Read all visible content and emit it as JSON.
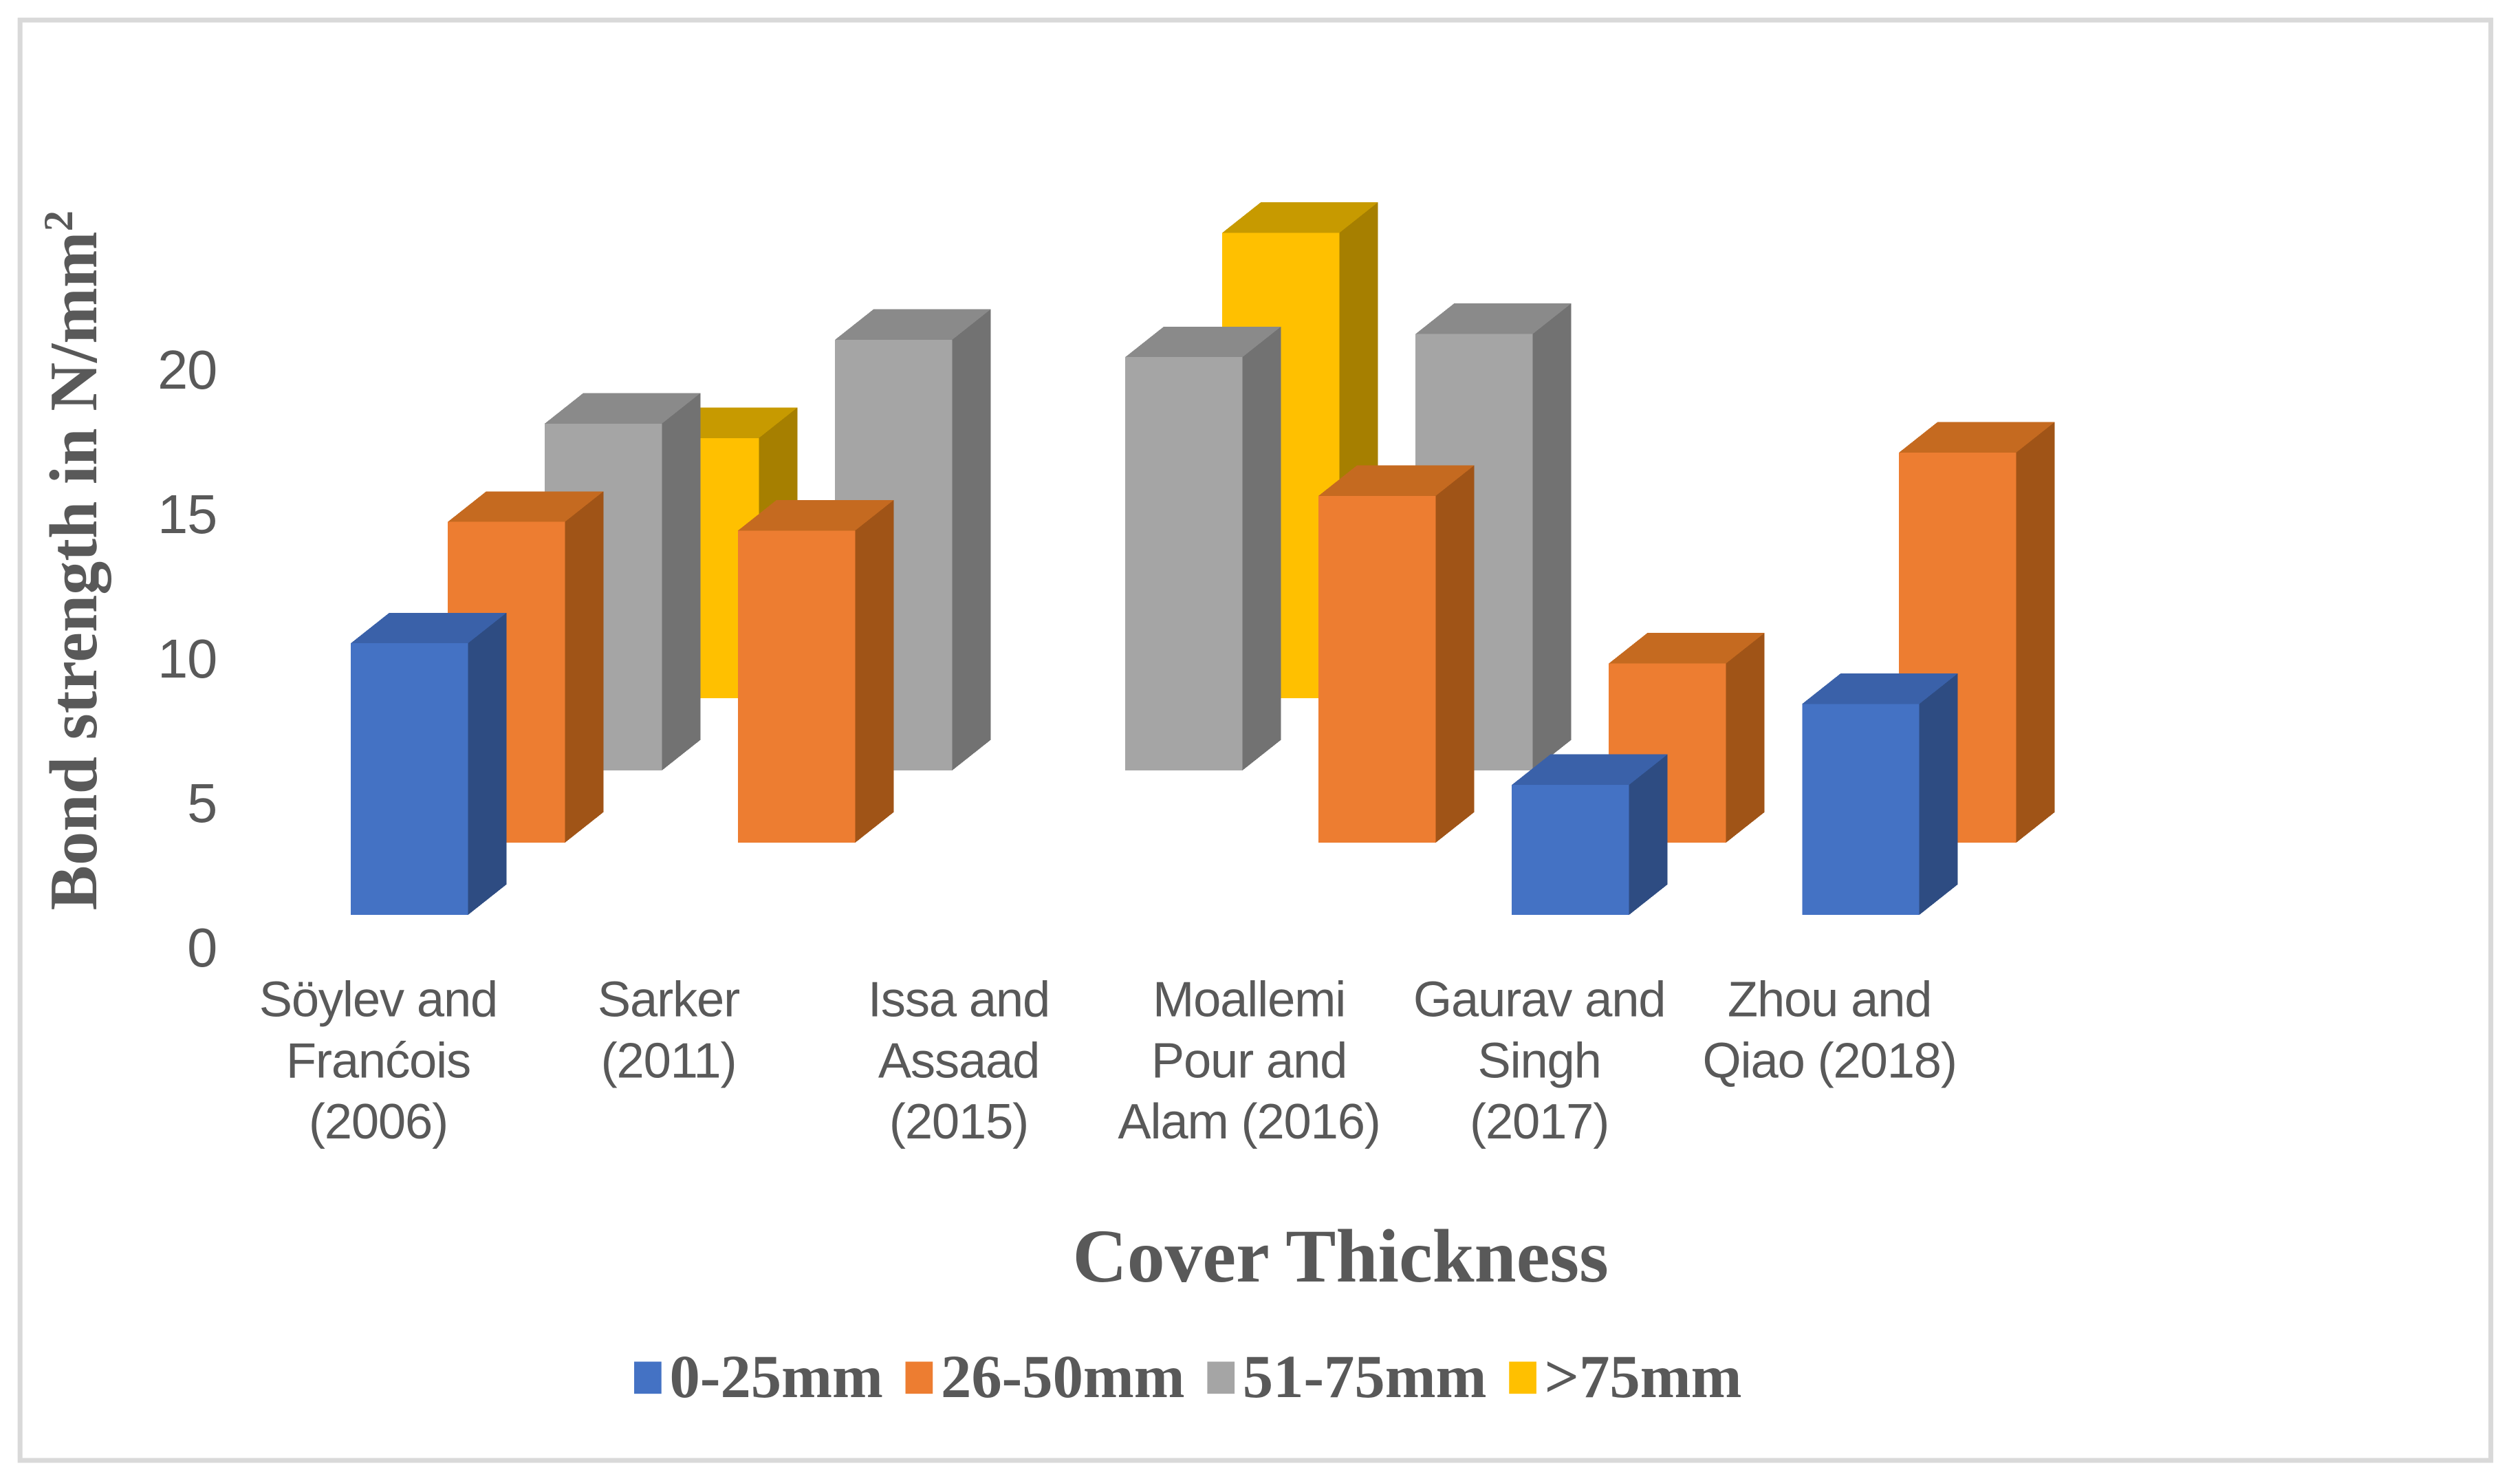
{
  "figure": {
    "background": "#FFFFFF",
    "border_color": "#D9D9D9",
    "text_color": "#595959"
  },
  "chart_data": {
    "type": "bar",
    "variant": "3d-column",
    "title": "",
    "xlabel": "Cover Thickness",
    "ylabel": "Bond strength in N/mm²",
    "ylabel_base": "Bond strength in N/mm",
    "ylabel_sup": "2",
    "ylim": [
      0,
      20
    ],
    "yticks": [
      0,
      5,
      10,
      15,
      20
    ],
    "ytick_labels": [
      "0",
      "5",
      "10",
      "15",
      "20"
    ],
    "grid": false,
    "legend_position": "bottom",
    "categories": [
      "Söylev and Franćois (2006)",
      "Sarker (2011)",
      "Issa and Assaad (2015)",
      "Moallemi Pour and Alam (2016)",
      "Gaurav and Singh (2017)",
      "Zhou and Qiao (2018)"
    ],
    "categories_wrapped": [
      "Söylev and\nFranćois\n(2006)",
      "Sarker\n(2011)",
      "Issa and\nAssaad\n(2015)",
      "Moallemi\nPour and\nAlam (2016)",
      "Gaurav and\nSingh\n(2017)",
      "Zhou and\nQiao (2018)"
    ],
    "series": [
      {
        "name": "0-25mm",
        "color": "#4472C4",
        "faces": {
          "front": "#4472C4",
          "top": "#3A61A9",
          "side": "#2E4C82"
        },
        "values": [
          9.4,
          null,
          null,
          null,
          4.5,
          7.3
        ]
      },
      {
        "name": "26-50mm",
        "color": "#ED7D31",
        "faces": {
          "front": "#ED7D31",
          "top": "#C56A20",
          "side": "#A05417"
        },
        "values": [
          11.1,
          10.8,
          null,
          12.0,
          6.2,
          13.5
        ]
      },
      {
        "name": "51-75mm",
        "color": "#A5A5A5",
        "faces": {
          "front": "#A5A5A5",
          "top": "#8A8A8A",
          "side": "#727272"
        },
        "values": [
          12.0,
          14.9,
          14.3,
          15.1,
          null,
          null
        ]
      },
      {
        "name": ">75mm",
        "color": "#FFC000",
        "faces": {
          "front": "#FFC000",
          "top": "#C79A00",
          "side": "#A67F00"
        },
        "values": [
          9.0,
          null,
          16.1,
          null,
          null,
          null
        ]
      }
    ]
  }
}
